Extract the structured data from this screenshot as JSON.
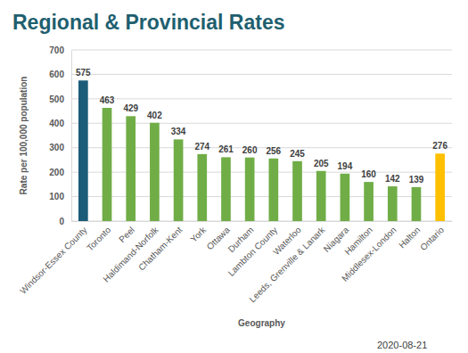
{
  "chart_data": {
    "type": "bar",
    "title": "Regional & Provincial Rates",
    "subtitle": "2020-08-21",
    "x_label": "Geography",
    "y_label": "Rate per 100,000 population",
    "categories": [
      "Windsor-Essex County",
      "Toronto",
      "Peel",
      "Haldimand-Norfolk",
      "Chatham-Kent",
      "York",
      "Ottawa",
      "Durham",
      "Lambton County",
      "Waterloo",
      "Leeds, Grenville & Lanark",
      "Niagara",
      "Hamilton",
      "Middlesex-London",
      "Halton",
      "Ontario"
    ],
    "values": [
      575,
      463,
      429,
      402,
      334,
      274,
      261,
      260,
      256,
      245,
      205,
      194,
      160,
      142,
      139,
      276
    ],
    "colors": [
      "#1b5c79",
      "#70ad47",
      "#70ad47",
      "#70ad47",
      "#70ad47",
      "#70ad47",
      "#70ad47",
      "#70ad47",
      "#70ad47",
      "#70ad47",
      "#70ad47",
      "#70ad47",
      "#70ad47",
      "#70ad47",
      "#70ad47",
      "#ffc000"
    ],
    "ylim": [
      0,
      700
    ],
    "yticks": [
      0,
      100,
      200,
      300,
      400,
      500,
      600,
      700
    ],
    "grid": true,
    "data_labels": true
  }
}
